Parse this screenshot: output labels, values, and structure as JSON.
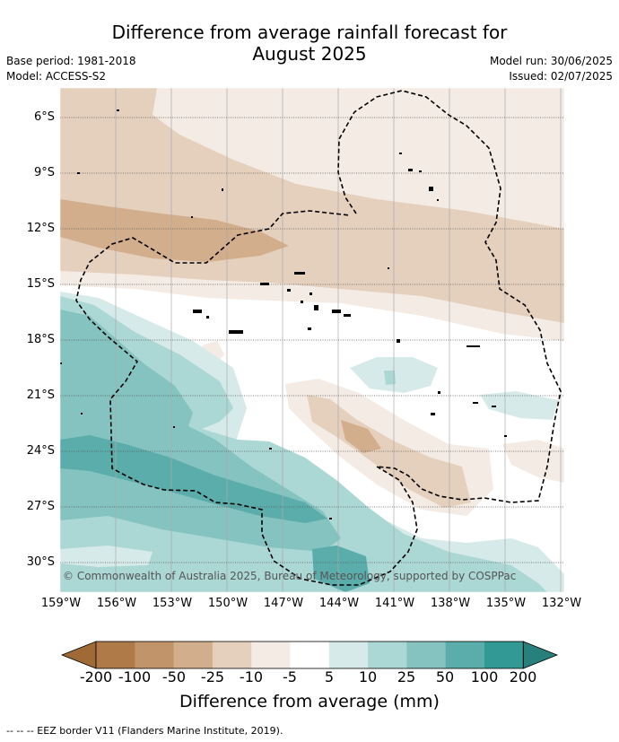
{
  "title": "Difference from average rainfall forecast for August 2025",
  "title_lines": [
    "Difference from average rainfall forecast for",
    "August 2025"
  ],
  "meta_left": {
    "base_period": "Base period: 1981-2018",
    "model": "Model: ACCESS-S2"
  },
  "meta_right": {
    "model_run": "Model run: 30/06/2025",
    "issued": "Issued: 02/07/2025"
  },
  "latitudes": [
    "6°S",
    "9°S",
    "12°S",
    "15°S",
    "18°S",
    "21°S",
    "24°S",
    "27°S",
    "30°S"
  ],
  "longitudes": [
    "159°W",
    "156°W",
    "153°W",
    "150°W",
    "147°W",
    "144°W",
    "141°W",
    "138°W",
    "135°W",
    "132°W"
  ],
  "copyright": "© Commonwealth of Australia 2025, Bureau of Meteorology, supported by COSPPac",
  "colorbar": {
    "ticks": [
      "-200",
      "-100",
      "-50",
      "-25",
      "-10",
      "-5",
      "5",
      "10",
      "25",
      "50",
      "100",
      "200"
    ],
    "colors": [
      "#a06a36",
      "#b07a48",
      "#c29469",
      "#d3ae8c",
      "#e5d0bd",
      "#f4ebe4",
      "#ffffff",
      "#d6eae9",
      "#abd7d5",
      "#85c3c0",
      "#5aadaa",
      "#339994",
      "#27807c"
    ],
    "label": "Difference from average (mm)"
  },
  "footer": "--  --  -- EEZ border V11 (Flanders Marine Institute, 2019)."
}
